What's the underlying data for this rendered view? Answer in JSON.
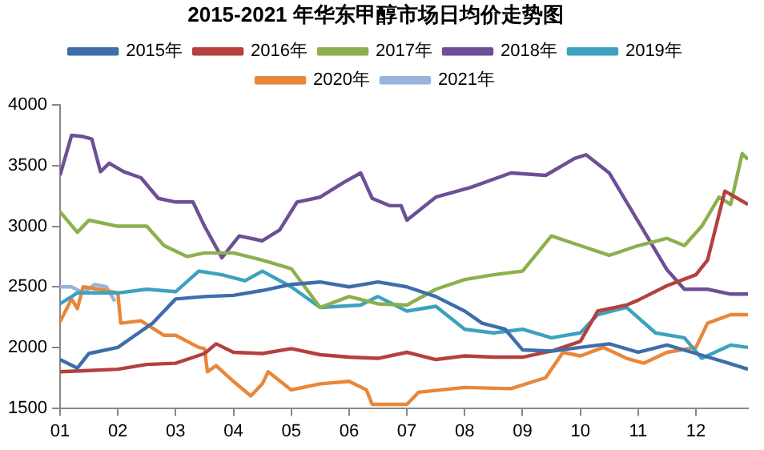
{
  "chart_data": {
    "type": "line",
    "title": "2015-2021 年华东甲醇市场日均价走势图",
    "xlim": [
      1,
      12.9
    ],
    "xticks": [
      {
        "value": 1,
        "label": "01"
      },
      {
        "value": 2,
        "label": "02"
      },
      {
        "value": 3,
        "label": "03"
      },
      {
        "value": 4,
        "label": "04"
      },
      {
        "value": 5,
        "label": "05"
      },
      {
        "value": 6,
        "label": "06"
      },
      {
        "value": 7,
        "label": "07"
      },
      {
        "value": 8,
        "label": "08"
      },
      {
        "value": 9,
        "label": "09"
      },
      {
        "value": 10,
        "label": "10"
      },
      {
        "value": 11,
        "label": "11"
      },
      {
        "value": 12,
        "label": "12"
      }
    ],
    "ylim": [
      1500,
      4000
    ],
    "yticks": [
      1500,
      2000,
      2500,
      3000,
      3500,
      4000
    ],
    "grid": false,
    "legend": "top",
    "marker": "none",
    "line_style": "solid",
    "series": [
      {
        "name": "2015年",
        "color": "#3e6eaa",
        "x": [
          1,
          1.3,
          1.5,
          2,
          2.3,
          2.6,
          3,
          3.5,
          4,
          4.5,
          5,
          5.5,
          6,
          6.5,
          7,
          7.5,
          8,
          8.3,
          8.7,
          9,
          9.5,
          10,
          10.5,
          11,
          11.5,
          12,
          12.5,
          12.9
        ],
        "values": [
          1900,
          1830,
          1950,
          2000,
          2100,
          2200,
          2400,
          2420,
          2430,
          2470,
          2520,
          2540,
          2500,
          2540,
          2500,
          2420,
          2300,
          2200,
          2150,
          1980,
          1970,
          2000,
          2030,
          1960,
          2020,
          1950,
          1880,
          1820
        ]
      },
      {
        "name": "2016年",
        "color": "#b5403d",
        "x": [
          1,
          1.5,
          2,
          2.5,
          3,
          3.5,
          3.7,
          4,
          4.5,
          5,
          5.5,
          6,
          6.5,
          7,
          7.5,
          8,
          8.5,
          9,
          9.5,
          10,
          10.3,
          10.8,
          11,
          11.5,
          12,
          12.2,
          12.5,
          12.9
        ],
        "values": [
          1800,
          1810,
          1820,
          1860,
          1870,
          1950,
          2030,
          1960,
          1950,
          1990,
          1940,
          1920,
          1910,
          1960,
          1900,
          1930,
          1920,
          1920,
          1970,
          2050,
          2300,
          2350,
          2390,
          2510,
          2600,
          2720,
          3290,
          3180
        ]
      },
      {
        "name": "2017年",
        "color": "#8cb04e",
        "x": [
          1,
          1.3,
          1.5,
          2,
          2.5,
          2.8,
          3.2,
          3.5,
          4,
          4.5,
          5,
          5.5,
          6,
          6.5,
          7,
          7.5,
          8,
          8.5,
          9,
          9.5,
          10,
          10.5,
          11,
          11.5,
          11.8,
          12.1,
          12.4,
          12.6,
          12.8,
          12.9
        ],
        "values": [
          3120,
          2950,
          3050,
          3000,
          3000,
          2840,
          2750,
          2780,
          2780,
          2720,
          2650,
          2330,
          2420,
          2360,
          2350,
          2480,
          2560,
          2600,
          2630,
          2920,
          2840,
          2760,
          2840,
          2900,
          2840,
          3000,
          3240,
          3180,
          3600,
          3550
        ]
      },
      {
        "name": "2018年",
        "color": "#6d4f97",
        "x": [
          1,
          1.2,
          1.4,
          1.55,
          1.7,
          1.85,
          2.1,
          2.4,
          2.7,
          3,
          3.3,
          3.5,
          3.8,
          4.1,
          4.5,
          4.8,
          5.1,
          5.5,
          5.9,
          6.2,
          6.4,
          6.7,
          6.9,
          7,
          7.5,
          8.1,
          8.8,
          9.4,
          9.9,
          10.1,
          10.5,
          10.8,
          11.1,
          11.5,
          11.8,
          12.2,
          12.6,
          12.9
        ],
        "values": [
          3420,
          3750,
          3740,
          3720,
          3450,
          3520,
          3450,
          3400,
          3230,
          3200,
          3200,
          3000,
          2740,
          2920,
          2880,
          2970,
          3200,
          3240,
          3360,
          3440,
          3230,
          3170,
          3170,
          3050,
          3240,
          3320,
          3440,
          3420,
          3560,
          3590,
          3440,
          3200,
          2960,
          2640,
          2480,
          2480,
          2440,
          2440
        ]
      },
      {
        "name": "2019年",
        "color": "#3ca2be",
        "x": [
          1,
          1.3,
          2,
          2.5,
          3,
          3.4,
          3.8,
          4.2,
          4.5,
          5,
          5.5,
          6.2,
          6.5,
          7,
          7.5,
          8,
          8.5,
          9,
          9.5,
          10,
          10.3,
          10.8,
          11.3,
          11.8,
          12.1,
          12.6,
          12.9
        ],
        "values": [
          2360,
          2450,
          2450,
          2480,
          2460,
          2630,
          2600,
          2550,
          2630,
          2500,
          2330,
          2350,
          2420,
          2300,
          2340,
          2150,
          2120,
          2150,
          2080,
          2120,
          2270,
          2330,
          2120,
          2080,
          1910,
          2020,
          2000
        ]
      },
      {
        "name": "2020年",
        "color": "#e8873a",
        "x": [
          1,
          1.2,
          1.3,
          1.4,
          1.8,
          2,
          2.05,
          2.4,
          2.8,
          3,
          3.4,
          3.5,
          3.55,
          3.7,
          4,
          4.3,
          4.5,
          4.6,
          5,
          5.5,
          6,
          6.3,
          6.4,
          7,
          7.2,
          8,
          8.8,
          9.4,
          9.7,
          10,
          10.4,
          10.8,
          11.1,
          11.5,
          12,
          12.2,
          12.6,
          12.9
        ],
        "values": [
          2210,
          2400,
          2320,
          2500,
          2470,
          2450,
          2200,
          2220,
          2100,
          2100,
          2000,
          1990,
          1800,
          1850,
          1720,
          1600,
          1700,
          1800,
          1650,
          1700,
          1720,
          1650,
          1530,
          1530,
          1630,
          1670,
          1660,
          1750,
          1960,
          1930,
          2000,
          1910,
          1870,
          1960,
          2000,
          2200,
          2270,
          2270
        ]
      },
      {
        "name": "2021年",
        "color": "#97b4da",
        "x": [
          1,
          1.2,
          1.4,
          1.6,
          1.8,
          1.95
        ],
        "values": [
          2500,
          2500,
          2450,
          2520,
          2500,
          2380
        ]
      }
    ]
  }
}
